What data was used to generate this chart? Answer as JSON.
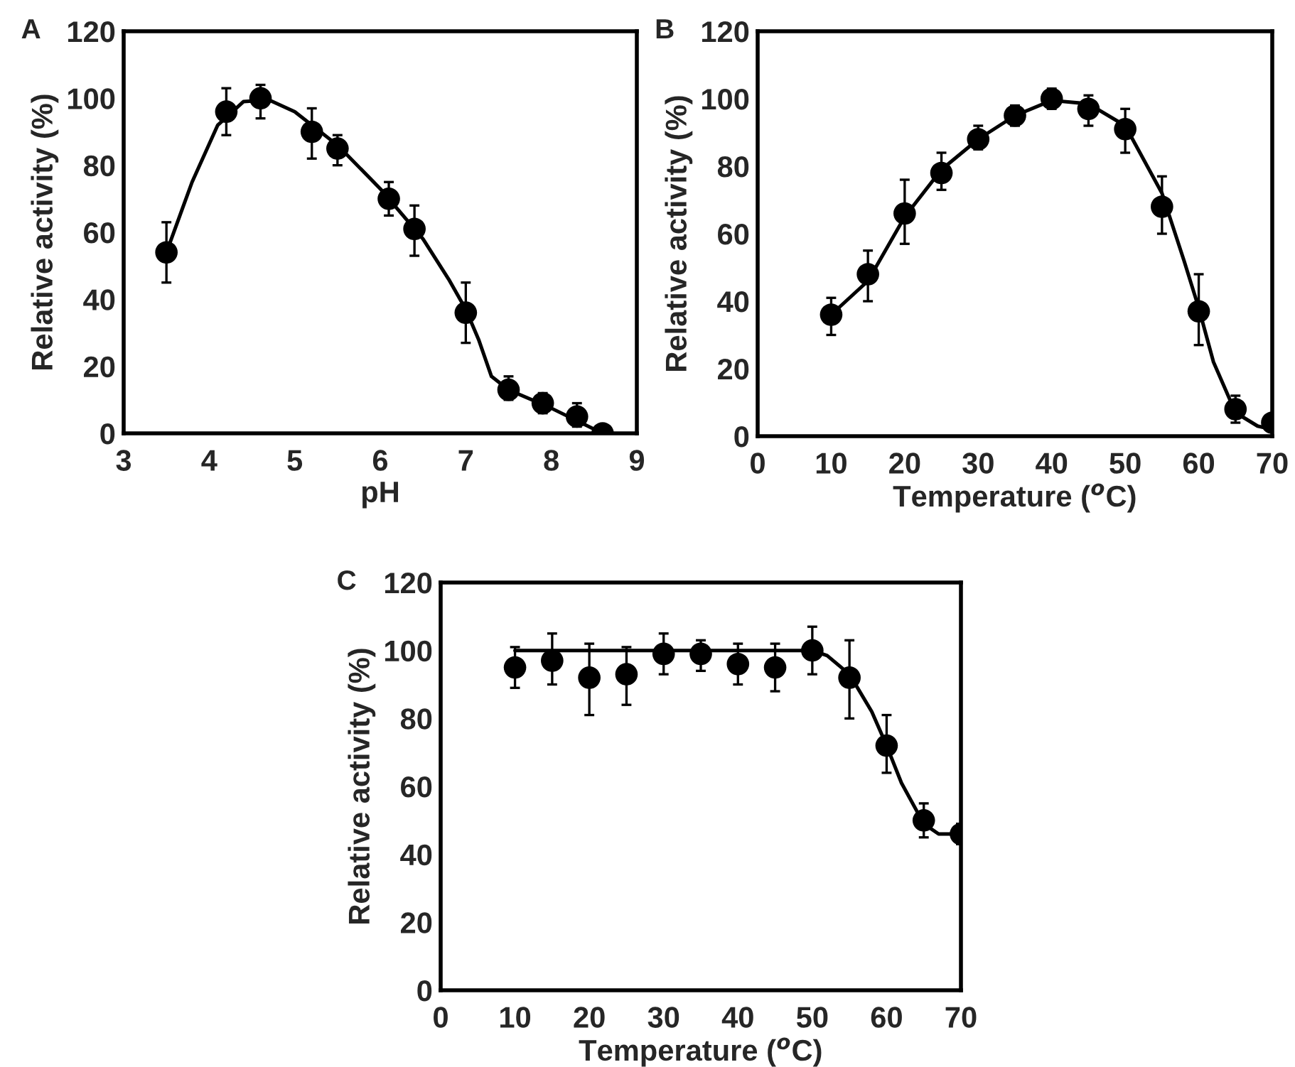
{
  "chart_data": [
    {
      "type": "scatter",
      "title": "A",
      "xlabel": "pH",
      "ylabel": "Relative activity (%)",
      "xlim": [
        3,
        9
      ],
      "xticks": [
        3,
        4,
        5,
        6,
        7,
        8,
        9
      ],
      "ylim": [
        0,
        120
      ],
      "yticks": [
        0,
        20,
        40,
        60,
        80,
        100,
        120
      ],
      "grid": false,
      "legend": false,
      "series": [
        {
          "color": "#000000",
          "marker": "circle",
          "x": [
            3.5,
            4.2,
            4.6,
            5.2,
            5.5,
            6.1,
            6.4,
            7.0,
            7.5,
            7.9,
            8.3,
            8.6
          ],
          "values": [
            54,
            96,
            100,
            90,
            85,
            70,
            61,
            36,
            13,
            9,
            5,
            0
          ],
          "errors": [
            [
              45,
              63
            ],
            [
              89,
              103
            ],
            [
              94,
              104
            ],
            [
              82,
              97
            ],
            [
              80,
              89
            ],
            [
              65,
              75
            ],
            [
              53,
              68
            ],
            [
              27,
              45
            ],
            [
              10,
              17
            ],
            [
              6,
              12
            ],
            [
              2,
              9
            ],
            null
          ]
        },
        {
          "type": "line",
          "color": "#000000",
          "line_style": "solid",
          "x": [
            3.5,
            3.8,
            4.1,
            4.4,
            4.7,
            5.0,
            5.5,
            6.0,
            6.5,
            6.8,
            7.0,
            7.15,
            7.3,
            7.5,
            8.0,
            8.6
          ],
          "values": [
            54,
            75,
            92,
            99,
            99.5,
            96,
            86,
            73,
            58,
            46,
            37,
            28,
            17,
            13,
            7.5,
            0
          ]
        }
      ]
    },
    {
      "type": "scatter",
      "title": "B",
      "xlabel": "Temperature ($^{o}$C)",
      "ylabel": "Relative activity (%)",
      "xlim": [
        0,
        70
      ],
      "xticks": [
        0,
        10,
        20,
        30,
        40,
        50,
        60,
        70
      ],
      "ylim": [
        0,
        120
      ],
      "yticks": [
        0,
        20,
        40,
        60,
        80,
        100,
        120
      ],
      "grid": false,
      "legend": false,
      "series": [
        {
          "color": "#000000",
          "marker": "circle",
          "x": [
            10,
            15,
            20,
            25,
            30,
            35,
            40,
            45,
            50,
            55,
            60,
            65,
            70
          ],
          "values": [
            36,
            48,
            66,
            78,
            88,
            95,
            100,
            97,
            91,
            68,
            37,
            8,
            4
          ],
          "errors": [
            [
              30,
              41
            ],
            [
              40,
              55
            ],
            [
              57,
              76
            ],
            [
              73,
              84
            ],
            [
              85,
              92
            ],
            [
              92,
              98
            ],
            [
              97,
              103
            ],
            [
              92,
              101
            ],
            [
              84,
              97
            ],
            [
              60,
              77
            ],
            [
              27,
              48
            ],
            [
              4,
              12
            ],
            [
              2,
              6
            ]
          ]
        },
        {
          "type": "line",
          "color": "#000000",
          "line_style": "solid",
          "x": [
            10,
            15,
            20,
            25,
            30,
            35,
            40,
            45,
            50,
            55,
            58,
            60,
            62,
            65,
            68,
            70
          ],
          "values": [
            36,
            46,
            65,
            79,
            88,
            95,
            99.5,
            98.5,
            92,
            72,
            52,
            38,
            22,
            7,
            3,
            2
          ]
        }
      ]
    },
    {
      "type": "scatter",
      "title": "C",
      "xlabel": "Temperature ($^{o}$C)",
      "ylabel": "Relative activity (%)",
      "xlim": [
        0,
        70
      ],
      "xticks": [
        0,
        10,
        20,
        30,
        40,
        50,
        60,
        70
      ],
      "ylim": [
        0,
        120
      ],
      "yticks": [
        0,
        20,
        40,
        60,
        80,
        100,
        120
      ],
      "grid": false,
      "legend": false,
      "series": [
        {
          "color": "#000000",
          "marker": "circle",
          "x": [
            10,
            15,
            20,
            25,
            30,
            35,
            40,
            45,
            50,
            55,
            60,
            65,
            70
          ],
          "values": [
            95,
            97,
            92,
            93,
            99,
            99,
            96,
            95,
            100,
            92,
            72,
            50,
            46
          ],
          "errors": [
            [
              89,
              101
            ],
            [
              90,
              105
            ],
            [
              81,
              102
            ],
            [
              84,
              101
            ],
            [
              93,
              105
            ],
            [
              94,
              103
            ],
            [
              90,
              102
            ],
            [
              88,
              102
            ],
            [
              93,
              107
            ],
            [
              80,
              103
            ],
            [
              64,
              81
            ],
            [
              45,
              55
            ],
            [
              43,
              49
            ]
          ]
        },
        {
          "type": "line",
          "color": "#000000",
          "line_style": "solid",
          "x": [
            10,
            50,
            52,
            55,
            58,
            60,
            62,
            65,
            67,
            70
          ],
          "values": [
            100,
            100,
            98.5,
            93,
            82,
            72,
            61,
            49,
            46,
            46
          ]
        }
      ]
    }
  ]
}
